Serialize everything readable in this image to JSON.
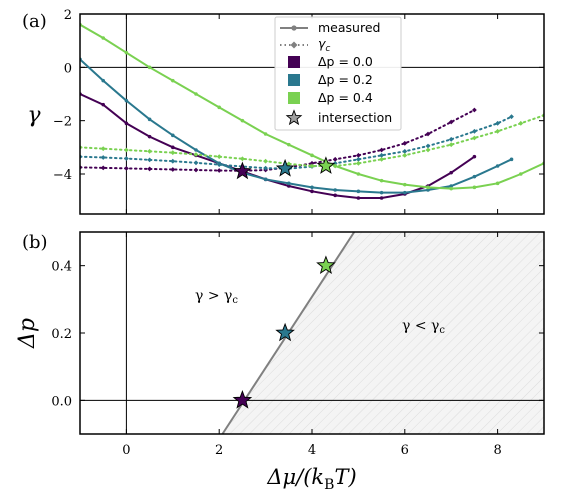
{
  "chart_data": [
    {
      "panel_label": "(a)",
      "type": "line",
      "ylabel": "γ",
      "xlim": [
        -1,
        9
      ],
      "ylim": [
        -5.5,
        2
      ],
      "xticks": [
        0,
        2,
        4,
        6,
        8
      ],
      "yticks": [
        2,
        0,
        -2,
        -4
      ],
      "ytick_labels": [
        "2",
        "0",
        "−2",
        "−4"
      ],
      "legend_position": "top-center",
      "legend": [
        {
          "key": "measured",
          "label": "measured",
          "style": "gray-solid-dot"
        },
        {
          "key": "gamma_c",
          "label": "γ",
          "sub": "c",
          "style": "gray-dotted-diamond"
        },
        {
          "key": "dp00",
          "label": "Δp = 0.0",
          "style": "dark-purple-square"
        },
        {
          "key": "dp02",
          "label": "Δp = 0.2",
          "style": "teal-square"
        },
        {
          "key": "dp04",
          "label": "Δp = 0.4",
          "style": "green-square"
        },
        {
          "key": "intersection",
          "label": "intersection",
          "style": "gray-star"
        }
      ],
      "series": [
        {
          "delta_p": 0.0,
          "color": "#440154",
          "kind": "measured",
          "x": [
            -1.0,
            -0.5,
            0.0,
            0.5,
            1.0,
            1.5,
            2.0,
            2.5,
            3.0,
            3.5,
            4.0,
            4.5,
            5.0,
            5.5,
            6.0,
            6.5,
            7.0,
            7.5
          ],
          "y": [
            -1.0,
            -1.4,
            -2.1,
            -2.6,
            -3.0,
            -3.3,
            -3.6,
            -3.9,
            -4.2,
            -4.45,
            -4.65,
            -4.8,
            -4.9,
            -4.9,
            -4.75,
            -4.45,
            -3.95,
            -3.35
          ]
        },
        {
          "delta_p": 0.2,
          "color": "#2a788e",
          "kind": "measured",
          "x": [
            -1.0,
            -0.5,
            0.0,
            0.5,
            1.0,
            1.5,
            2.0,
            2.5,
            3.0,
            3.5,
            4.0,
            4.5,
            5.0,
            5.5,
            6.0,
            6.5,
            7.0,
            7.5,
            8.0,
            8.3
          ],
          "y": [
            0.3,
            -0.5,
            -1.25,
            -1.95,
            -2.55,
            -3.1,
            -3.6,
            -3.95,
            -4.2,
            -4.35,
            -4.5,
            -4.6,
            -4.65,
            -4.7,
            -4.7,
            -4.6,
            -4.45,
            -4.1,
            -3.7,
            -3.45
          ]
        },
        {
          "delta_p": 0.4,
          "color": "#7ad151",
          "kind": "measured",
          "x": [
            -1.0,
            -0.5,
            0.0,
            0.5,
            1.0,
            1.5,
            2.0,
            2.5,
            3.0,
            3.5,
            4.0,
            4.5,
            5.0,
            5.5,
            6.0,
            6.5,
            7.0,
            7.5,
            8.0,
            8.5,
            9.0
          ],
          "y": [
            1.6,
            1.1,
            0.55,
            0.0,
            -0.5,
            -1.0,
            -1.5,
            -2.0,
            -2.5,
            -2.9,
            -3.3,
            -3.7,
            -4.0,
            -4.25,
            -4.4,
            -4.5,
            -4.55,
            -4.5,
            -4.35,
            -4.0,
            -3.6
          ]
        },
        {
          "delta_p": 0.0,
          "color": "#440154",
          "kind": "gamma_c",
          "x": [
            -1.0,
            -0.5,
            0.0,
            0.5,
            1.0,
            1.5,
            2.0,
            2.5,
            3.0,
            3.5,
            4.0,
            4.5,
            5.0,
            5.5,
            6.0,
            6.5,
            7.0,
            7.5
          ],
          "y": [
            -3.75,
            -3.77,
            -3.79,
            -3.81,
            -3.83,
            -3.85,
            -3.87,
            -3.88,
            -3.85,
            -3.75,
            -3.6,
            -3.45,
            -3.3,
            -3.1,
            -2.85,
            -2.5,
            -2.05,
            -1.6
          ]
        },
        {
          "delta_p": 0.2,
          "color": "#2a788e",
          "kind": "gamma_c",
          "x": [
            -1.0,
            -0.5,
            0.0,
            0.5,
            1.0,
            1.5,
            2.0,
            2.5,
            3.0,
            3.5,
            4.0,
            4.5,
            5.0,
            5.5,
            6.0,
            6.5,
            7.0,
            7.5,
            8.0,
            8.3
          ],
          "y": [
            -3.35,
            -3.38,
            -3.42,
            -3.47,
            -3.52,
            -3.58,
            -3.65,
            -3.72,
            -3.78,
            -3.8,
            -3.72,
            -3.6,
            -3.45,
            -3.3,
            -3.15,
            -2.95,
            -2.7,
            -2.4,
            -2.1,
            -1.85
          ]
        },
        {
          "delta_p": 0.4,
          "color": "#7ad151",
          "kind": "gamma_c",
          "x": [
            -1.0,
            -0.5,
            0.0,
            0.5,
            1.0,
            1.5,
            2.0,
            2.5,
            3.0,
            3.5,
            4.0,
            4.5,
            5.0,
            5.5,
            6.0,
            6.5,
            7.0,
            7.5,
            8.0,
            8.5,
            9.0
          ],
          "y": [
            -3.0,
            -3.05,
            -3.1,
            -3.15,
            -3.2,
            -3.27,
            -3.35,
            -3.43,
            -3.52,
            -3.62,
            -3.7,
            -3.7,
            -3.6,
            -3.45,
            -3.3,
            -3.1,
            -2.9,
            -2.65,
            -2.4,
            -2.1,
            -1.8
          ]
        }
      ],
      "intersections": [
        {
          "delta_p": 0.0,
          "x": 2.5,
          "y": -3.9,
          "color": "#440154"
        },
        {
          "delta_p": 0.2,
          "x": 3.42,
          "y": -3.8,
          "color": "#2a788e"
        },
        {
          "delta_p": 0.4,
          "x": 4.3,
          "y": -3.7,
          "color": "#7ad151"
        }
      ]
    },
    {
      "panel_label": "(b)",
      "type": "line",
      "xlabel": "Δμ/(k",
      "xlabel_sub": "B",
      "xlabel_tail": "T)",
      "ylabel": "Δp",
      "xlim": [
        -1,
        9
      ],
      "ylim": [
        -0.1,
        0.5
      ],
      "xticks": [
        0,
        2,
        4,
        6,
        8
      ],
      "yticks": [
        0.0,
        0.2,
        0.4
      ],
      "ytick_labels": [
        "0.0",
        "0.2",
        "0.4"
      ],
      "region_labels": {
        "left": {
          "text": "γ > γ",
          "sub": "c"
        },
        "right": {
          "text": "γ < γ",
          "sub": "c"
        }
      },
      "boundary_line": {
        "x": [
          2.07,
          4.91
        ],
        "y": [
          -0.1,
          0.5
        ],
        "color": "#808080"
      },
      "points": [
        {
          "x": 2.5,
          "y": 0.0,
          "color": "#440154"
        },
        {
          "x": 3.42,
          "y": 0.2,
          "color": "#2a788e"
        },
        {
          "x": 4.3,
          "y": 0.4,
          "color": "#7ad151"
        }
      ]
    }
  ]
}
